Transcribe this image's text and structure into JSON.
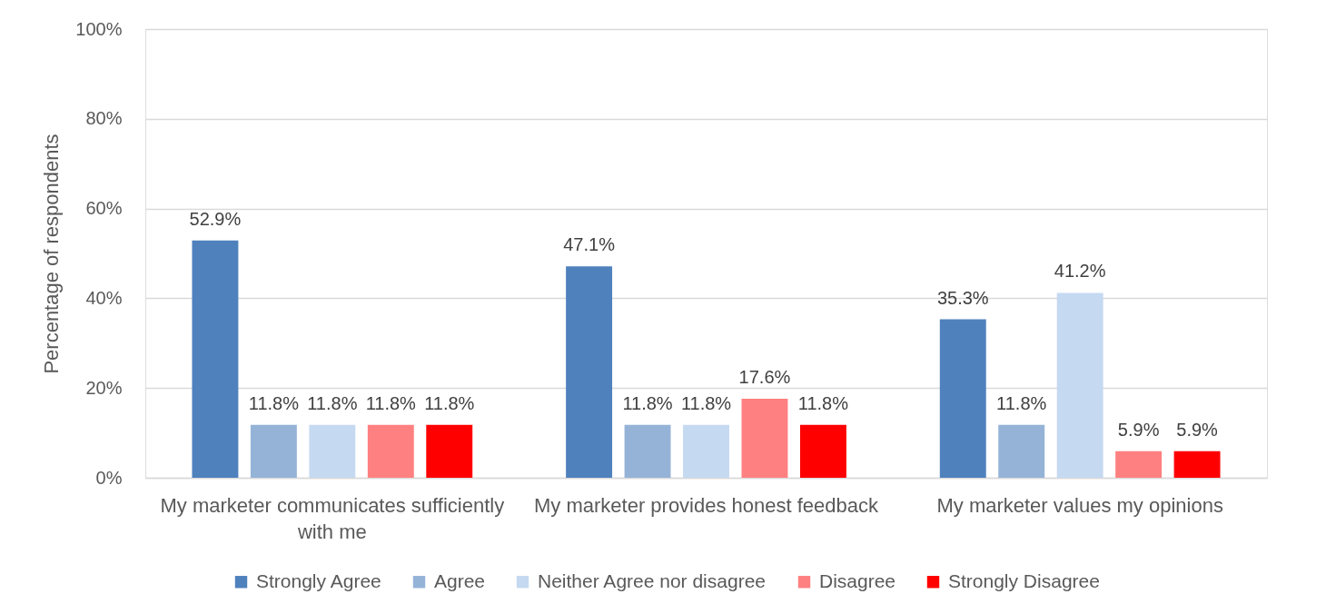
{
  "chart_data": {
    "type": "bar",
    "ylabel": "Percentage of respondents",
    "categories": [
      "My marketer communicates sufficiently with me",
      "My marketer provides honest feedback",
      "My marketer values my opinions"
    ],
    "series": [
      {
        "name": "Strongly Agree",
        "color": "#4f81bd",
        "values": [
          52.9,
          47.1,
          35.3
        ],
        "value_labels": [
          "52.9%",
          "47.1%",
          "35.3%"
        ]
      },
      {
        "name": "Agree",
        "color": "#95b3d7",
        "values": [
          11.8,
          11.8,
          11.8
        ],
        "value_labels": [
          "11.8%",
          "11.8%",
          "11.8%"
        ]
      },
      {
        "name": "Neither Agree nor disagree",
        "color": "#c5d9f1",
        "values": [
          11.8,
          11.8,
          41.2
        ],
        "value_labels": [
          "11.8%",
          "11.8%",
          "41.2%"
        ]
      },
      {
        "name": "Disagree",
        "color": "#ff8080",
        "values": [
          11.8,
          17.6,
          5.9
        ],
        "value_labels": [
          "11.8%",
          "17.6%",
          "5.9%"
        ]
      },
      {
        "name": "Strongly Disagree",
        "color": "#ff0000",
        "values": [
          11.8,
          11.8,
          5.9
        ],
        "value_labels": [
          "11.8%",
          "11.8%",
          "5.9%"
        ]
      }
    ],
    "ylim": [
      0,
      100
    ],
    "yticks": [
      {
        "value": 0,
        "label": "0%"
      },
      {
        "value": 20,
        "label": "20%"
      },
      {
        "value": 40,
        "label": "40%"
      },
      {
        "value": 60,
        "label": "60%"
      },
      {
        "value": 80,
        "label": "80%"
      },
      {
        "value": 100,
        "label": "100%"
      }
    ],
    "grid": "y",
    "legend": "bottom"
  }
}
